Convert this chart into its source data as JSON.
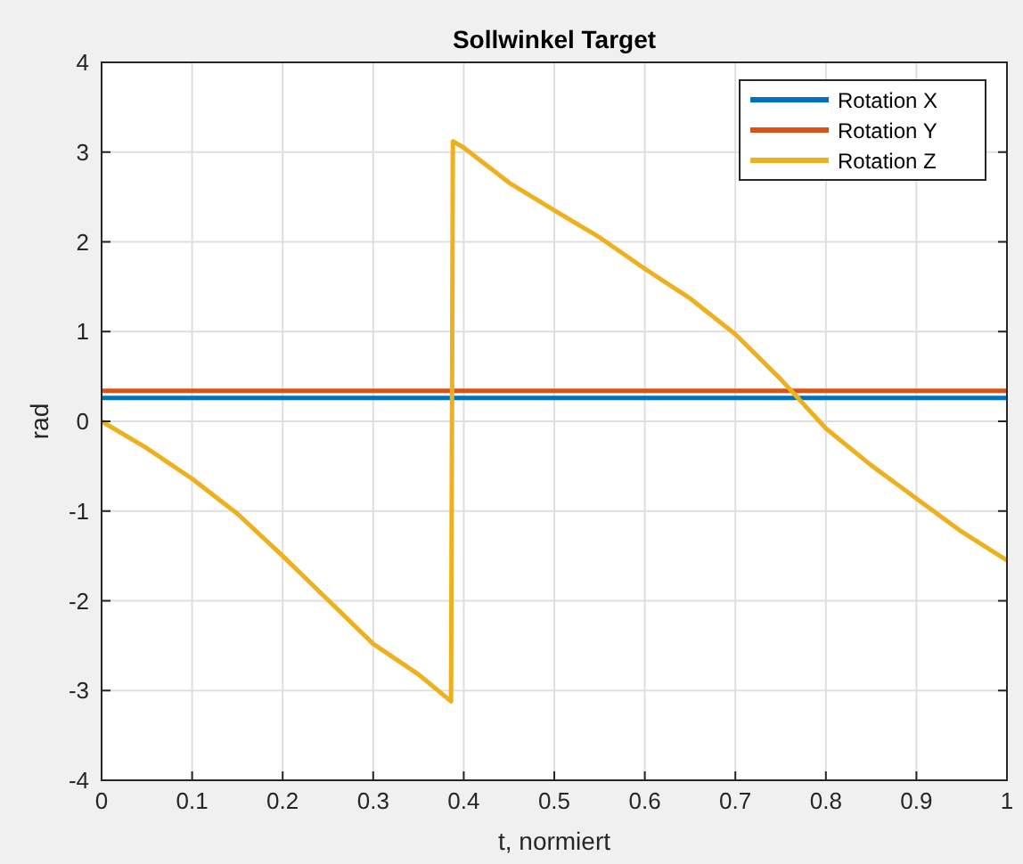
{
  "chart_data": {
    "type": "line",
    "title": "Sollwinkel Target",
    "xlabel": "t, normiert",
    "ylabel": "rad",
    "xlim": [
      0,
      1
    ],
    "xticks": [
      0,
      0.1,
      0.2,
      0.3,
      0.4,
      0.5,
      0.6,
      0.7,
      0.8,
      0.9,
      1
    ],
    "ylim": [
      -4,
      4
    ],
    "yticks": [
      -4,
      -3,
      -2,
      -1,
      0,
      1,
      2,
      3,
      4
    ],
    "grid": true,
    "legend": "top right",
    "line_style": "solid",
    "marker": "none",
    "series": [
      {
        "name": "Rotation X",
        "color": "#0072bd",
        "x": [
          0,
          1
        ],
        "values": [
          0.26,
          0.26
        ]
      },
      {
        "name": "Rotation Y",
        "color": "#d95319",
        "x": [
          0,
          1
        ],
        "values": [
          0.34,
          0.34
        ]
      },
      {
        "name": "Rotation Z",
        "color": "#edb120",
        "x": [
          0,
          0.05,
          0.1,
          0.15,
          0.2,
          0.25,
          0.3,
          0.35,
          0.386,
          0.388,
          0.4,
          0.45,
          0.5,
          0.55,
          0.6,
          0.65,
          0.7,
          0.75,
          0.8,
          0.85,
          0.9,
          0.95,
          1
        ],
        "values": [
          0,
          -0.3,
          -0.64,
          -1.03,
          -1.5,
          -1.99,
          -2.48,
          -2.82,
          -3.12,
          3.12,
          3.05,
          2.66,
          2.35,
          2.05,
          1.7,
          1.37,
          0.97,
          0.47,
          -0.08,
          -0.49,
          -0.86,
          -1.23,
          -1.55
        ]
      }
    ]
  }
}
